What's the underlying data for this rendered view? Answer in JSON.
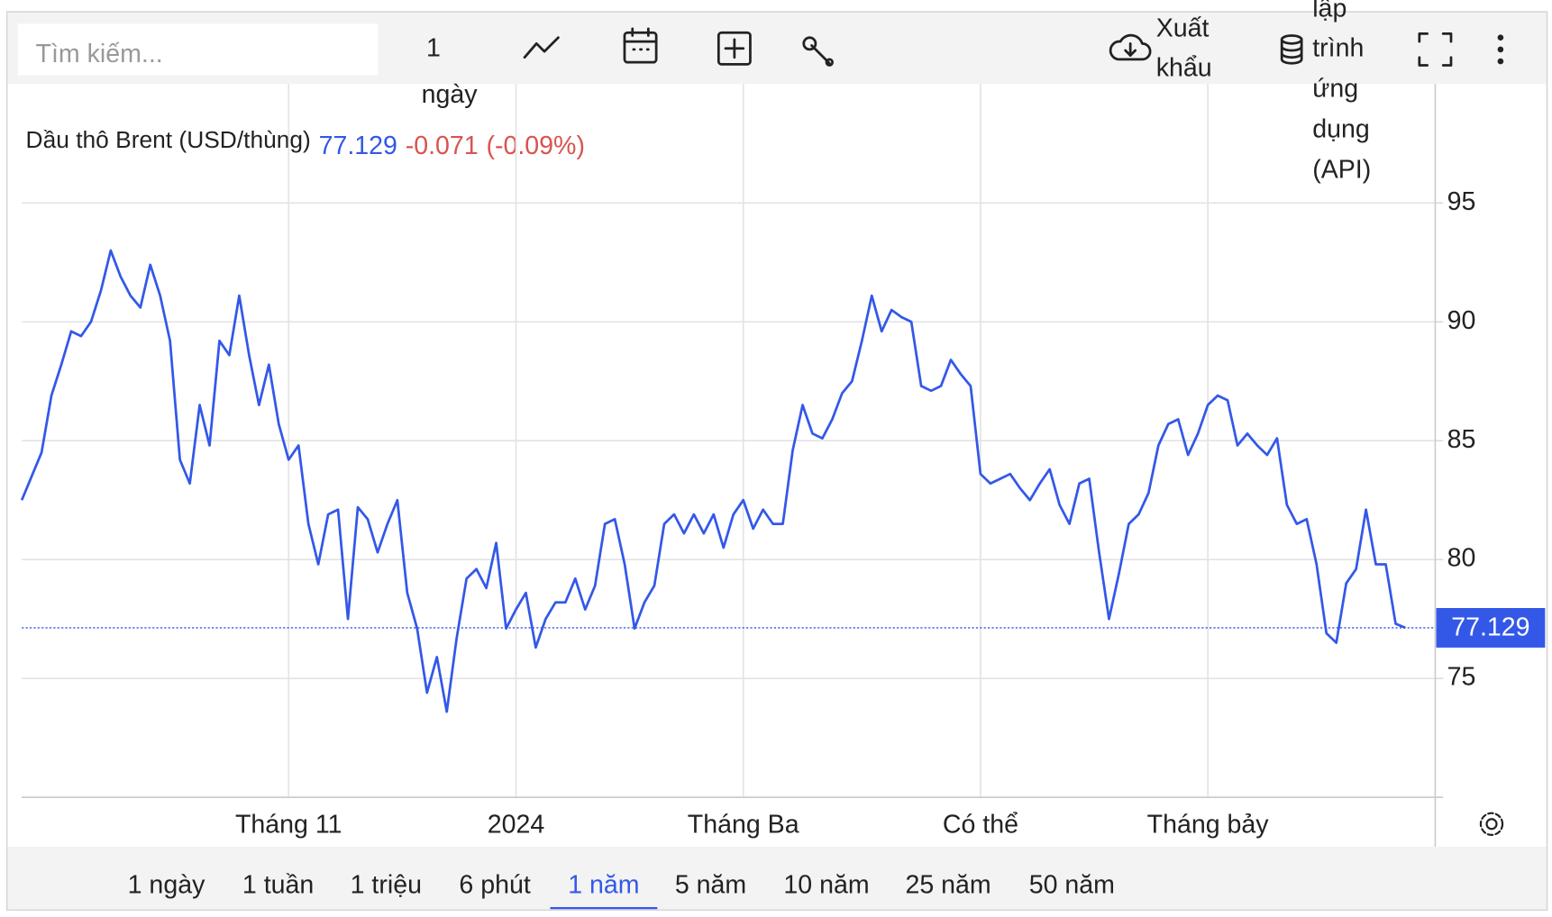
{
  "toolbar": {
    "search_placeholder": "Tìm kiếm...",
    "interval": [
      "1",
      "ngày"
    ],
    "export": [
      "Xuất",
      "khẩu"
    ],
    "api": [
      "lập",
      "trình",
      "ứng",
      "dụng",
      "(API)"
    ]
  },
  "chart_data": {
    "type": "line",
    "title": "Dầu thô Brent (USD/thùng)",
    "current_value": 77.129,
    "change": -0.071,
    "change_percent": {
      "value": -0.09,
      "label": "(-0.09%)"
    },
    "ylim": [
      70,
      100
    ],
    "yticks": [
      75,
      80,
      85,
      90,
      95
    ],
    "grid": true,
    "y_axis_side": "right",
    "categories": [
      null,
      null,
      null,
      null,
      null,
      null,
      null,
      null,
      null,
      null,
      null,
      null,
      null,
      null,
      null,
      null,
      null,
      null,
      null,
      null,
      null,
      null,
      null,
      null,
      null,
      null,
      null,
      "Tháng 11",
      null,
      null,
      null,
      null,
      null,
      null,
      null,
      null,
      null,
      null,
      null,
      null,
      null,
      null,
      null,
      null,
      null,
      null,
      null,
      null,
      null,
      null,
      "2024",
      null,
      null,
      null,
      null,
      null,
      null,
      null,
      null,
      null,
      null,
      null,
      null,
      null,
      null,
      null,
      null,
      null,
      null,
      null,
      null,
      null,
      null,
      "Tháng Ba",
      null,
      null,
      null,
      null,
      null,
      null,
      null,
      null,
      null,
      null,
      null,
      null,
      null,
      null,
      null,
      null,
      null,
      null,
      null,
      null,
      null,
      null,
      null,
      "Có thể",
      null,
      null,
      null,
      null,
      null,
      null,
      null,
      null,
      null,
      null,
      null,
      null,
      null,
      null,
      null,
      null,
      null,
      null,
      null,
      null,
      null,
      null,
      "Tháng bảy",
      null,
      null,
      null,
      null,
      null,
      null,
      null,
      null,
      null,
      null,
      null,
      null,
      null,
      null,
      null,
      null,
      null,
      null,
      null,
      null
    ],
    "series": [
      {
        "name": "Dầu thô Brent",
        "color": "#3358e8",
        "values": [
          82.5,
          83.5,
          84.5,
          86.9,
          88.2,
          89.6,
          89.4,
          90.0,
          91.3,
          93.0,
          91.9,
          91.1,
          90.6,
          92.4,
          91.1,
          89.2,
          84.2,
          83.2,
          86.5,
          84.8,
          89.2,
          88.6,
          91.1,
          88.6,
          86.5,
          88.2,
          85.7,
          84.2,
          84.8,
          81.5,
          79.8,
          81.9,
          82.1,
          77.5,
          82.2,
          81.7,
          80.3,
          81.5,
          82.5,
          78.6,
          77.1,
          74.4,
          75.9,
          73.6,
          76.7,
          79.2,
          79.6,
          78.8,
          80.7,
          77.1,
          77.9,
          78.6,
          76.3,
          77.5,
          78.2,
          78.2,
          79.2,
          77.9,
          78.9,
          81.5,
          81.7,
          79.8,
          77.1,
          78.2,
          78.9,
          81.5,
          81.9,
          81.1,
          81.9,
          81.1,
          81.9,
          80.5,
          81.9,
          82.5,
          81.3,
          82.1,
          81.5,
          81.5,
          84.6,
          86.5,
          85.3,
          85.1,
          85.9,
          87.0,
          87.5,
          89.2,
          91.1,
          89.6,
          90.5,
          90.2,
          90.0,
          87.3,
          87.1,
          87.3,
          88.4,
          87.8,
          87.3,
          83.6,
          83.2,
          83.4,
          83.6,
          83.0,
          82.5,
          83.2,
          83.8,
          82.3,
          81.5,
          83.2,
          83.4,
          80.3,
          77.5,
          79.4,
          81.5,
          81.9,
          82.8,
          84.8,
          85.7,
          85.9,
          84.4,
          85.3,
          86.5,
          86.9,
          86.7,
          84.8,
          85.3,
          84.8,
          84.4,
          85.1,
          82.3,
          81.5,
          81.7,
          79.8,
          76.9,
          76.5,
          79.0,
          79.6,
          82.1,
          79.8,
          79.8,
          77.3,
          77.129
        ]
      }
    ]
  },
  "ranges": [
    {
      "label": "1 ngày"
    },
    {
      "label": "1 tuần"
    },
    {
      "label": "1 triệu"
    },
    {
      "label": "6 phút"
    },
    {
      "label": "1 năm",
      "active": true
    },
    {
      "label": "5 năm"
    },
    {
      "label": "10 năm"
    },
    {
      "label": "25 năm"
    },
    {
      "label": "50 năm"
    }
  ]
}
